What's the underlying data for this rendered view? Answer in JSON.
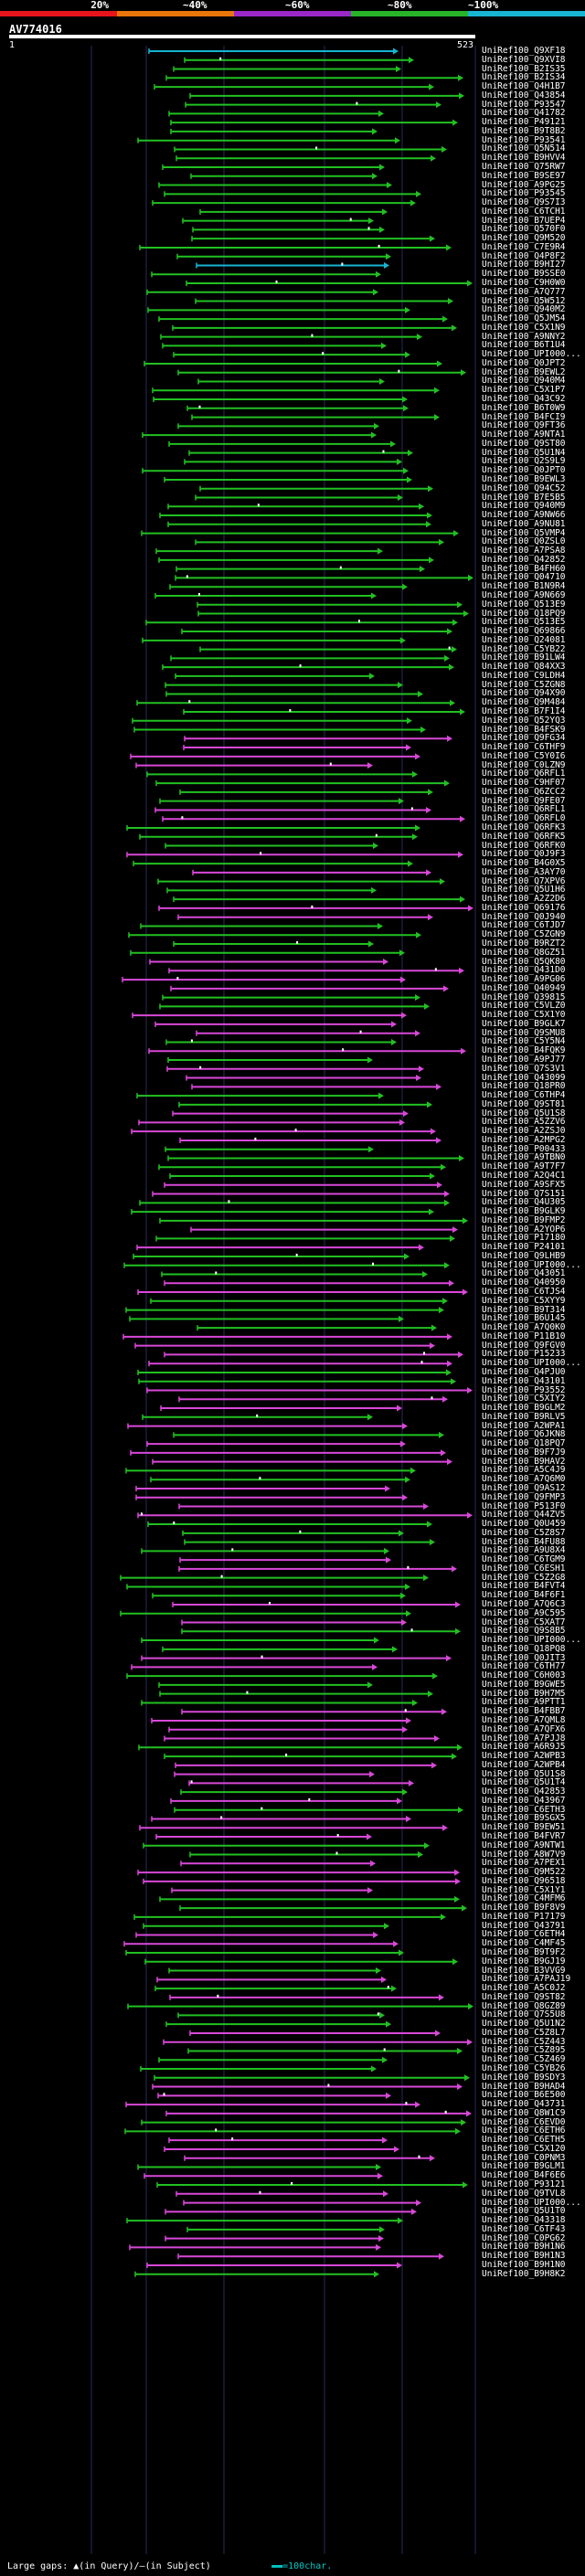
{
  "legend": {
    "labels": [
      "20%",
      "~40%",
      "~60%",
      "~80%",
      "~100%"
    ],
    "colors": [
      "#e8141c",
      "#e8760a",
      "#9a28c8",
      "#28b428",
      "#18b4d2"
    ]
  },
  "query": {
    "name": "AV774016",
    "start": "1",
    "end": "523"
  },
  "colors": {
    "green": "#22c022",
    "magenta": "#d848d8",
    "cyan": "#18b4d2",
    "mark": "#ffffff"
  },
  "hits": [
    "UniRef100_Q9XF18",
    "UniRef100_Q9XVI8",
    "UniRef100_B2IS35",
    "UniRef100_B2IS34",
    "UniRef100_Q4H1B7",
    "UniRef100_Q43854",
    "UniRef100_P93547",
    "UniRef100_Q41782",
    "UniRef100_P49121",
    "UniRef100_B9T8B2",
    "UniRef100_P93541",
    "UniRef100_Q5N514",
    "UniRef100_B9HVV4",
    "UniRef100_Q75RW7",
    "UniRef100_B9SE97",
    "UniRef100_A9PG25",
    "UniRef100_P93545",
    "UniRef100_Q9S7I3",
    "UniRef100_C6TCH1",
    "UniRef100_B7UEP4",
    "UniRef100_Q570F0",
    "UniRef100_Q9M520",
    "UniRef100_C7E9R4",
    "UniRef100_Q4P8F2",
    "UniRef100_B9HI27",
    "UniRef100_B9SSE0",
    "UniRef100_C9H0W0",
    "UniRef100_A7Q777",
    "UniRef100_Q5W512",
    "UniRef100_Q940M2",
    "UniRef100_Q5JM54",
    "UniRef100_C5X1N9",
    "UniRef100_A9NNY2",
    "UniRef100_B6T1U4",
    "UniRef100_UPI000...",
    "UniRef100_Q0JPT2",
    "UniRef100_B9EWL2",
    "UniRef100_Q940M4",
    "UniRef100_C5X1P7",
    "UniRef100_Q43C92",
    "UniRef100_B6T0W9",
    "UniRef100_B4FCI9",
    "UniRef100_Q9FT36",
    "UniRef100_A9NTA1",
    "UniRef100_Q9ST80",
    "UniRef100_Q5U1N4",
    "UniRef100_Q2S9L9",
    "UniRef100_Q0JPT0",
    "UniRef100_B9EWL3",
    "UniRef100_Q94C52",
    "UniRef100_B7E5B5",
    "UniRef100_Q940M9",
    "UniRef100_A9NW66",
    "UniRef100_A9NU81",
    "UniRef100_Q5VMP4",
    "UniRef100_Q0ZSL0",
    "UniRef100_A7PSA8",
    "UniRef100_Q42852",
    "UniRef100_B4FH60",
    "UniRef100_Q04710",
    "UniRef100_B1N9R4",
    "UniRef100_A9N669",
    "UniRef100_Q513E9",
    "UniRef100_Q18PQ9",
    "UniRef100_Q513E5",
    "UniRef100_Q69866",
    "UniRef100_Q24081",
    "UniRef100_C5YB22",
    "UniRef100_B91LW4",
    "UniRef100_Q84XX3",
    "UniRef100_C9LDH4",
    "UniRef100_C5ZGN8",
    "UniRef100_Q94X90",
    "UniRef100_Q9M484",
    "UniRef100_B7F1I4",
    "UniRef100_Q52YQ3",
    "UniRef100_B4FSK9",
    "UniRef100_Q9FG34",
    "UniRef100_C6THF9",
    "UniRef100_C5Y0I6",
    "UniRef100_C0LZN9",
    "UniRef100_Q6RFL1",
    "UniRef100_C9HF07",
    "UniRef100_Q6ZCC2",
    "UniRef100_Q9FE07",
    "UniRef100_Q6RFL1",
    "UniRef100_Q6RFL0",
    "UniRef100_Q6RFK3",
    "UniRef100_Q6RFK5",
    "UniRef100_Q6RFK0",
    "UniRef100_Q0J9F3",
    "UniRef100_B4G0X5",
    "UniRef100_A3AY70",
    "UniRef100_Q7XPV6",
    "UniRef100_Q5U1H6",
    "UniRef100_A2Z2D6",
    "UniRef100_Q69176",
    "UniRef100_Q0J940",
    "UniRef100_C6TJD7",
    "UniRef100_C5ZGN9",
    "UniRef100_B9RZT2",
    "UniRef100_Q8GZ51",
    "UniRef100_Q5QK80",
    "UniRef100_Q431D0",
    "UniRef100_A9PG06",
    "UniRef100_Q40949",
    "UniRef100_Q39815",
    "UniRef100_C5VLZ0",
    "UniRef100_C5X1Y0",
    "UniRef100_B9GLK7",
    "UniRef100_Q9SMU8",
    "UniRef100_C5Y5N4",
    "UniRef100_B4FQK9",
    "UniRef100_A9PJ77",
    "UniRef100_Q7S3V1",
    "UniRef100_Q43099",
    "UniRef100_Q18PR0",
    "UniRef100_C6THP4",
    "UniRef100_Q9ST81",
    "UniRef100_Q5U1S8",
    "UniRef100_A5ZZV6",
    "UniRef100_A2ZSJ0",
    "UniRef100_A2MPG2",
    "UniRef100_P00433",
    "UniRef100_A9TBN0",
    "UniRef100_A9T7F7",
    "UniRef100_A2Q4C1",
    "UniRef100_A9SFX5",
    "UniRef100_Q7S151",
    "UniRef100_Q4U305",
    "UniRef100_B9GLK9",
    "UniRef100_B9FMP2",
    "UniRef100_A2YOP6",
    "UniRef100_P17180",
    "UniRef100_P24101",
    "UniRef100_Q9LHB9",
    "UniRef100_UPI000...",
    "UniRef100_Q43051",
    "UniRef100_Q40950",
    "UniRef100_C6TJS4",
    "UniRef100_C5XYY9",
    "UniRef100_B9T314",
    "UniRef100_B6U145",
    "UniRef100_A7Q0K0",
    "UniRef100_P11B10",
    "UniRef100_Q9FGV0",
    "UniRef100_P15233",
    "UniRef100_UPI000...",
    "UniRef100_Q4PJU0",
    "UniRef100_Q43101",
    "UniRef100_P93552",
    "UniRef100_C5XIY2",
    "UniRef100_B9GLM2",
    "UniRef100_B9RLV5",
    "UniRef100_A2WPA1",
    "UniRef100_Q6JKN8",
    "UniRef100_Q18PQ7",
    "UniRef100_B9F7J9",
    "UniRef100_B9HAV2",
    "UniRef100_A5C4J9",
    "UniRef100_A7Q6M0",
    "UniRef100_Q9AS12",
    "UniRef100_Q9FMP3",
    "UniRef100_P513F0",
    "UniRef100_Q44ZV5",
    "UniRef100_Q0U459",
    "UniRef100_C5Z8S7",
    "UniRef100_B4FU88",
    "UniRef100_A9U8X4",
    "UniRef100_C6TGM9",
    "UniRef100_C6ESH1",
    "UniRef100_C5Z2G8",
    "UniRef100_B4FVT4",
    "UniRef100_B4F6F1",
    "UniRef100_A7Q6C3",
    "UniRef100_A9C595",
    "UniRef100_C5XAT7",
    "UniRef100_Q9S8B5",
    "UniRef100_UPI000...",
    "UniRef100_Q18PQ8",
    "UniRef100_Q0JIT3",
    "UniRef100_C6TH77",
    "UniRef100_C6H003",
    "UniRef100_B9GWE5",
    "UniRef100_B9H7M5",
    "UniRef100_A9PTT1",
    "UniRef100_B4FBB7",
    "UniRef100_A7QML8",
    "UniRef100_A7QFX6",
    "UniRef100_A7PJJ8",
    "UniRef100_A6R9J5",
    "UniRef100_A2WPB3",
    "UniRef100_A2WPB4",
    "UniRef100_Q5U1S8",
    "UniRef100_Q5U1T4",
    "UniRef100_Q42853",
    "UniRef100_Q43967",
    "UniRef100_C6ETH3",
    "UniRef100_B9SGX5",
    "UniRef100_B9EW51",
    "UniRef100_B4FVR7",
    "UniRef100_A9NTW1",
    "UniRef100_A8W7V9",
    "UniRef100_A7PEX1",
    "UniRef100_Q9M522",
    "UniRef100_Q96518",
    "UniRef100_C5X1Y1",
    "UniRef100_C4MFM6",
    "UniRef100_B9F8V9",
    "UniRef100_P17179",
    "UniRef100_Q43791",
    "UniRef100_C6ETH4",
    "UniRef100_C4MF45",
    "UniRef100_B9T9F2",
    "UniRef100_B9GJ19",
    "UniRef100_B3VVG9",
    "UniRef100_A7PAJ19",
    "UniRef100_A5C0J2",
    "UniRef100_Q9ST82",
    "UniRef100_Q8GZ89",
    "UniRef100_Q7S5U8",
    "UniRef100_Q5U1N2",
    "UniRef100_C5Z8L7",
    "UniRef100_C5Z443",
    "UniRef100_C5Z895",
    "UniRef100_C5Z469",
    "UniRef100_C5YB26",
    "UniRef100_B9SDY3",
    "UniRef100_B9HAD4",
    "UniRef100_B6E500",
    "UniRef100_Q43731",
    "UniRef100_Q8W1C9",
    "UniRef100_C6EVD0",
    "UniRef100_C6ETH6",
    "UniRef100_C6ETH5",
    "UniRef100_C5X120",
    "UniRef100_C0PNM3",
    "UniRef100_B9GLM1",
    "UniRef100_B4F6E6",
    "UniRef100_P93121",
    "UniRef100_Q9TVL8",
    "UniRef100_UPI000...",
    "UniRef100_Q5U1T0",
    "UniRef100_Q43318",
    "UniRef100_C6TF43",
    "UniRef100_C0PG62",
    "UniRef100_B9H1N6",
    "UniRef100_B9H1N3",
    "UniRef100_B9H1N0",
    "UniRef100_B9H8K2"
  ],
  "footer": {
    "large_gaps": "Large gaps:",
    "in_query": "(in Query)",
    "in_subject": "(in Subject)",
    "scale": "=100char."
  }
}
